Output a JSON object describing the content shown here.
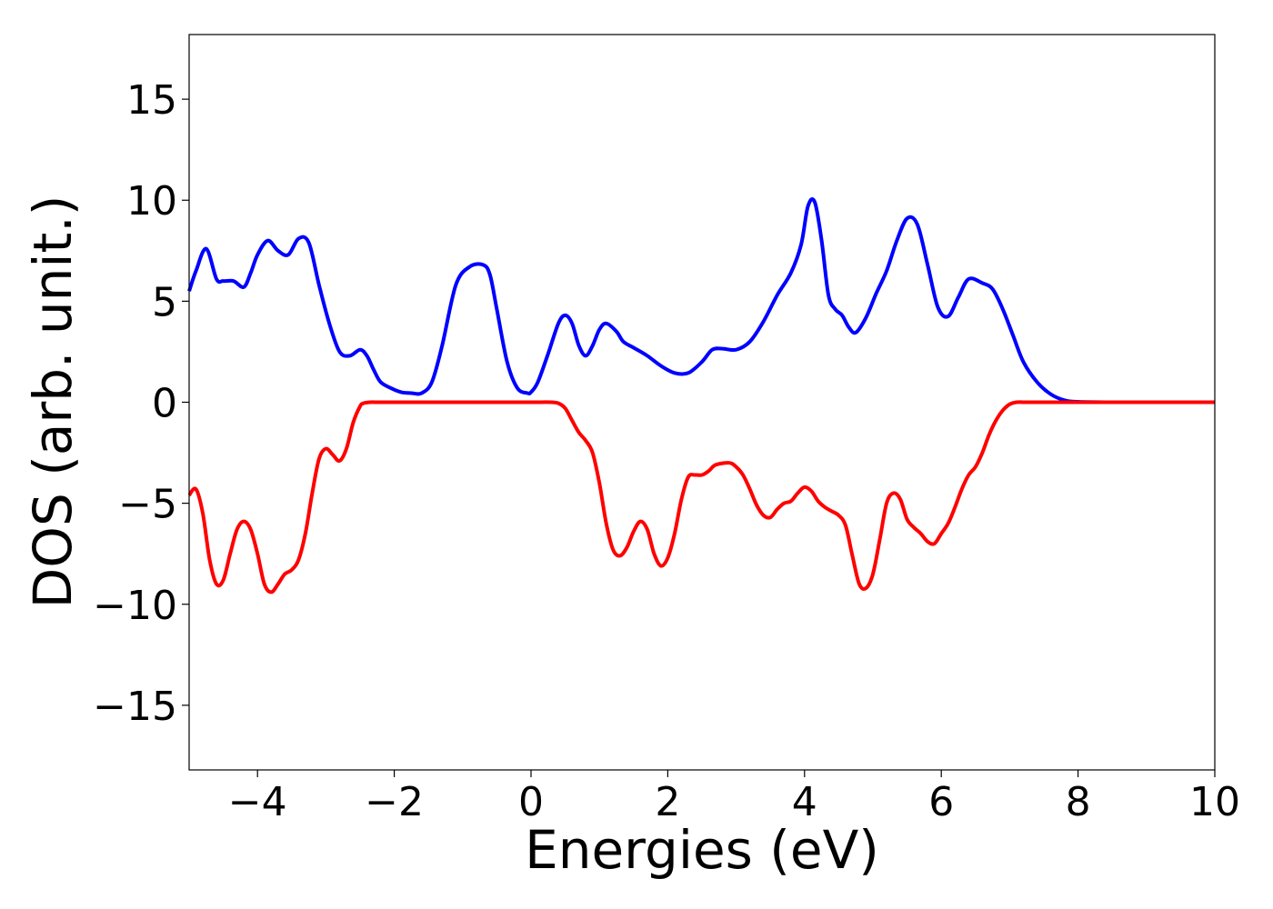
{
  "chart_data": {
    "type": "line",
    "xlabel": "Energies (eV)",
    "ylabel": "DOS (arb. unit.)",
    "xlim": [
      -5,
      10
    ],
    "ylim": [
      -18.2,
      18.2
    ],
    "grid": false,
    "x_ticks": [
      -4,
      -2,
      0,
      2,
      4,
      6,
      8,
      10
    ],
    "x_tick_labels": [
      "−4",
      "−2",
      "0",
      "2",
      "4",
      "6",
      "8",
      "10"
    ],
    "y_ticks": [
      15,
      10,
      5,
      0,
      -5,
      -10,
      -15
    ],
    "y_tick_labels": [
      "15",
      "10",
      "5",
      "0",
      "−5",
      "−10",
      "−15"
    ],
    "series": [
      {
        "color": "#0000ff",
        "x": [
          -5.0,
          -4.9,
          -4.75,
          -4.6,
          -4.5,
          -4.35,
          -4.2,
          -4.1,
          -4.0,
          -3.85,
          -3.7,
          -3.55,
          -3.4,
          -3.25,
          -3.1,
          -2.95,
          -2.8,
          -2.65,
          -2.5,
          -2.4,
          -2.3,
          -2.2,
          -2.05,
          -1.9,
          -1.75,
          -1.6,
          -1.45,
          -1.3,
          -1.1,
          -0.9,
          -0.7,
          -0.6,
          -0.5,
          -0.35,
          -0.2,
          -0.05,
          0.0,
          0.1,
          0.25,
          0.4,
          0.5,
          0.6,
          0.7,
          0.8,
          0.9,
          1.0,
          1.1,
          1.25,
          1.35,
          1.5,
          1.7,
          1.9,
          2.1,
          2.3,
          2.5,
          2.65,
          2.8,
          3.0,
          3.2,
          3.4,
          3.6,
          3.8,
          3.95,
          4.05,
          4.15,
          4.25,
          4.35,
          4.45,
          4.55,
          4.65,
          4.75,
          4.9,
          5.05,
          5.2,
          5.35,
          5.5,
          5.65,
          5.8,
          5.95,
          6.1,
          6.25,
          6.4,
          6.6,
          6.75,
          6.9,
          7.05,
          7.2,
          7.4,
          7.6,
          7.8,
          8.0,
          8.5,
          9.0,
          9.5,
          10.0
        ],
        "y": [
          5.5,
          6.5,
          7.6,
          6.1,
          6.0,
          6.0,
          5.7,
          6.4,
          7.3,
          8.0,
          7.5,
          7.3,
          8.1,
          7.9,
          5.8,
          3.9,
          2.5,
          2.3,
          2.6,
          2.3,
          1.6,
          1.0,
          0.7,
          0.5,
          0.45,
          0.45,
          1.0,
          2.8,
          5.8,
          6.7,
          6.8,
          6.3,
          4.6,
          2.0,
          0.7,
          0.45,
          0.5,
          1.0,
          2.4,
          3.9,
          4.3,
          3.9,
          2.8,
          2.3,
          2.8,
          3.6,
          3.9,
          3.5,
          3.0,
          2.7,
          2.3,
          1.8,
          1.45,
          1.45,
          2.0,
          2.6,
          2.65,
          2.6,
          3.0,
          4.0,
          5.3,
          6.4,
          7.8,
          9.7,
          9.9,
          8.0,
          5.3,
          4.6,
          4.3,
          3.7,
          3.45,
          4.2,
          5.4,
          6.5,
          8.0,
          9.1,
          8.8,
          6.8,
          4.7,
          4.25,
          5.2,
          6.1,
          5.9,
          5.6,
          4.6,
          3.3,
          2.0,
          1.0,
          0.4,
          0.1,
          0.02,
          0.0,
          0.0,
          0.0,
          0.0
        ]
      },
      {
        "color": "#ff0000",
        "x": [
          -5.0,
          -4.9,
          -4.8,
          -4.7,
          -4.6,
          -4.5,
          -4.4,
          -4.3,
          -4.2,
          -4.1,
          -4.0,
          -3.9,
          -3.8,
          -3.7,
          -3.6,
          -3.5,
          -3.4,
          -3.3,
          -3.2,
          -3.1,
          -3.0,
          -2.9,
          -2.8,
          -2.7,
          -2.6,
          -2.5,
          -2.45,
          -2.35,
          -2.25,
          -2.15,
          -2.05,
          -1.95,
          -1.9,
          -1.7,
          -1.5,
          -1.0,
          -0.5,
          0.0,
          0.3,
          0.4,
          0.5,
          0.6,
          0.7,
          0.8,
          0.9,
          1.0,
          1.1,
          1.2,
          1.3,
          1.4,
          1.5,
          1.6,
          1.7,
          1.8,
          1.9,
          2.0,
          2.1,
          2.2,
          2.3,
          2.4,
          2.5,
          2.6,
          2.7,
          2.9,
          3.0,
          3.1,
          3.2,
          3.3,
          3.4,
          3.5,
          3.6,
          3.7,
          3.8,
          3.9,
          4.0,
          4.1,
          4.2,
          4.3,
          4.4,
          4.5,
          4.6,
          4.7,
          4.8,
          4.9,
          5.0,
          5.1,
          5.2,
          5.3,
          5.4,
          5.5,
          5.6,
          5.7,
          5.8,
          5.9,
          6.0,
          6.1,
          6.2,
          6.3,
          6.4,
          6.5,
          6.6,
          6.7,
          6.8,
          6.9,
          7.0,
          7.1,
          7.2,
          7.3,
          7.4,
          7.5,
          7.6,
          7.7,
          7.8,
          7.9,
          8.0,
          8.2,
          8.5,
          9.0,
          9.5,
          10.0
        ],
        "y": [
          -4.6,
          -4.3,
          -5.5,
          -7.8,
          -9.0,
          -8.8,
          -7.5,
          -6.3,
          -5.9,
          -6.3,
          -7.5,
          -9.0,
          -9.4,
          -9.0,
          -8.5,
          -8.3,
          -7.8,
          -6.5,
          -4.5,
          -2.8,
          -2.3,
          -2.6,
          -2.9,
          -2.3,
          -1.0,
          -0.2,
          -0.05,
          0.0,
          0.0,
          0.0,
          0.0,
          0.0,
          0.0,
          0.0,
          0.0,
          0.0,
          0.0,
          0.0,
          0.0,
          -0.05,
          -0.3,
          -0.9,
          -1.5,
          -1.9,
          -2.5,
          -4.0,
          -6.0,
          -7.3,
          -7.6,
          -7.2,
          -6.4,
          -5.9,
          -6.3,
          -7.5,
          -8.1,
          -7.7,
          -6.5,
          -4.8,
          -3.7,
          -3.6,
          -3.6,
          -3.4,
          -3.1,
          -3.0,
          -3.2,
          -3.6,
          -4.3,
          -5.1,
          -5.6,
          -5.7,
          -5.3,
          -5.0,
          -4.9,
          -4.5,
          -4.2,
          -4.4,
          -4.9,
          -5.2,
          -5.4,
          -5.6,
          -6.1,
          -7.6,
          -9.0,
          -9.2,
          -8.5,
          -6.8,
          -5.0,
          -4.5,
          -4.8,
          -5.8,
          -6.2,
          -6.5,
          -6.9,
          -7.0,
          -6.5,
          -6.0,
          -5.2,
          -4.3,
          -3.6,
          -3.2,
          -2.5,
          -1.6,
          -0.9,
          -0.4,
          -0.1,
          0.0,
          0.0,
          0.0,
          0.0,
          0.0,
          0.0,
          0.0,
          0.0,
          0.0,
          0.0,
          0.0,
          0.0,
          0.0,
          0.0,
          0.0
        ]
      }
    ]
  }
}
